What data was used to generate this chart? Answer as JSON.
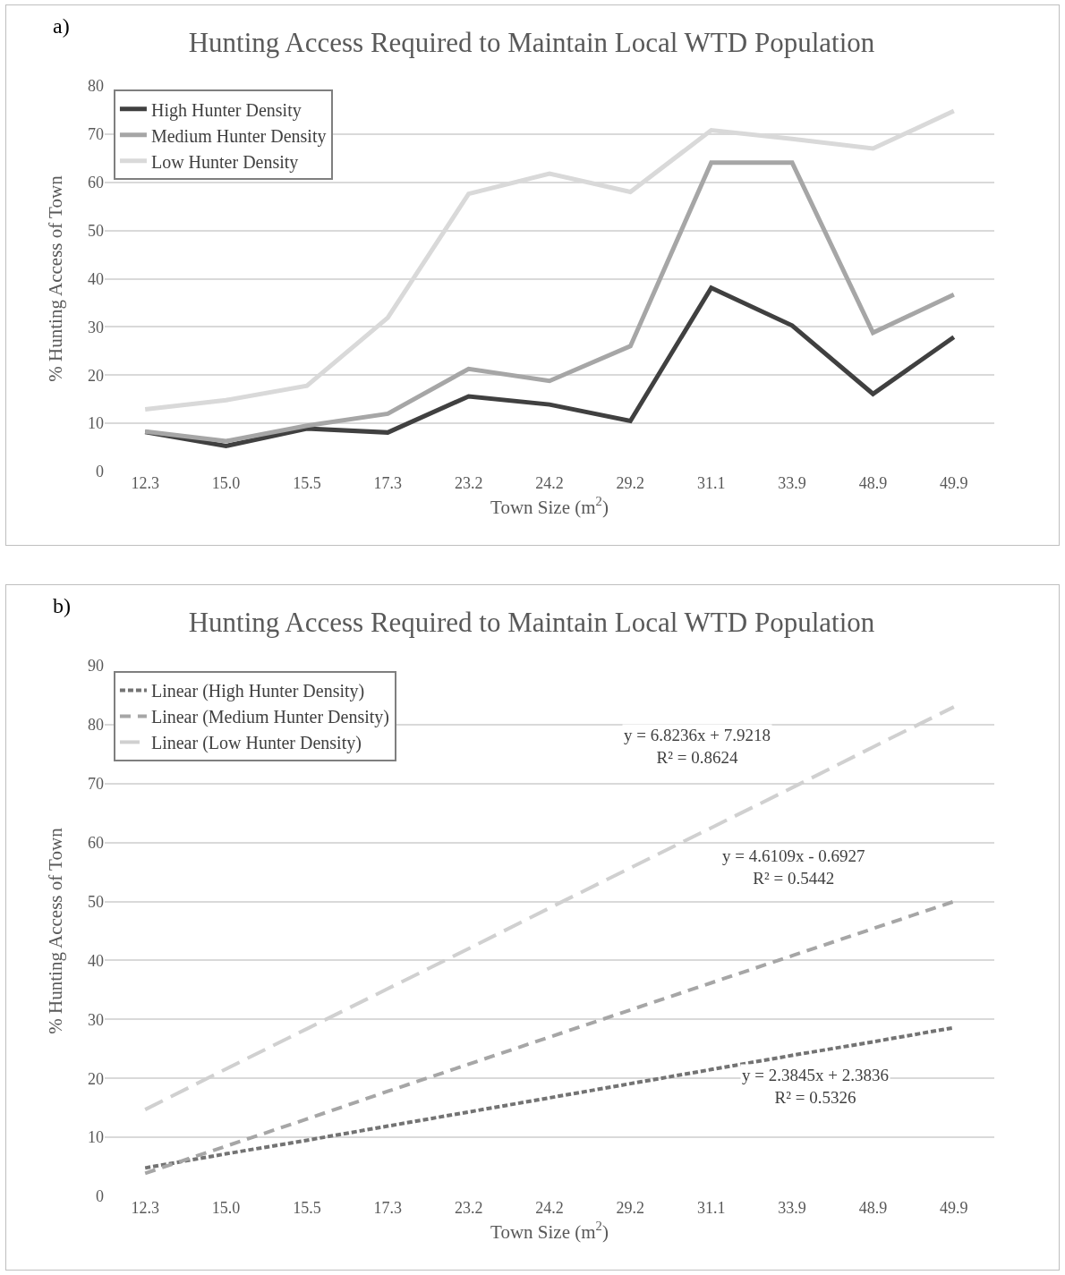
{
  "chart_data": [
    {
      "type": "line",
      "title": "Hunting Access Required to Maintain Local WTD Population",
      "xlabel": "Town Size (m$^{2}$)",
      "ylabel": "% Hunting Access of Town",
      "annotations": [
        "a)"
      ],
      "categories": [
        "12.3",
        "15.0",
        "15.5",
        "17.3",
        "23.2",
        "24.2",
        "29.2",
        "31.1",
        "33.9",
        "48.9",
        "49.9"
      ],
      "series": [
        {
          "name": "High Hunter Density",
          "color": "#404040",
          "values": [
            8.2,
            5.3,
            8.9,
            8.1,
            15.6,
            13.9,
            10.5,
            38.1,
            30.3,
            16.1,
            27.9
          ]
        },
        {
          "name": "Medium Hunter Density",
          "color": "#a6a6a6",
          "values": [
            8.3,
            6.3,
            9.5,
            12.0,
            21.3,
            18.8,
            26.0,
            64.1,
            64.1,
            28.8,
            36.7
          ]
        },
        {
          "name": "Low Hunter Density",
          "color": "#d9d9d9",
          "values": [
            12.9,
            14.8,
            17.8,
            31.9,
            57.6,
            61.8,
            58.0,
            70.8,
            69.0,
            67.0,
            74.8
          ]
        }
      ],
      "ylim": [
        0,
        80
      ],
      "yticks": [
        0,
        10,
        20,
        30,
        40,
        50,
        60,
        70,
        80
      ],
      "grid": "y",
      "legend": "top left",
      "line_style": "solid",
      "marker": "none"
    },
    {
      "type": "line",
      "title": "Hunting Access Required to Maintain Local WTD Population",
      "xlabel": "Town Size (m$^{2}$)",
      "ylabel": "% Hunting Access of Town",
      "annotations": [
        "b)",
        "y = 6.8236x + 7.9218\nR² = 0.8624",
        "y = 4.6109x - 0.6927\nR² = 0.5442",
        "y = 2.3845x + 2.3836\nR² = 0.5326"
      ],
      "categories": [
        "12.3",
        "15.0",
        "15.5",
        "17.3",
        "23.2",
        "24.2",
        "29.2",
        "31.1",
        "33.9",
        "48.9",
        "49.9"
      ],
      "series": [
        {
          "name": "Linear (High Hunter Density)",
          "color": "#737373",
          "line_style": "dotted",
          "values": [
            4.8,
            7.2,
            9.5,
            11.9,
            14.3,
            16.7,
            19.1,
            21.5,
            23.9,
            26.2,
            28.6
          ]
        },
        {
          "name": "Linear (Medium Hunter Density)",
          "color": "#a6a6a6",
          "line_style": "dashed",
          "values": [
            3.9,
            8.5,
            13.1,
            17.8,
            22.4,
            27.0,
            31.6,
            36.2,
            40.8,
            45.4,
            50.0
          ]
        },
        {
          "name": "Linear (Low Hunter Density)",
          "color": "#d0d0d0",
          "line_style": "dashed",
          "values": [
            14.7,
            21.6,
            28.4,
            35.2,
            42.0,
            48.9,
            55.7,
            62.5,
            69.3,
            76.2,
            83.0
          ]
        }
      ],
      "ylim": [
        0,
        90
      ],
      "yticks": [
        0,
        10,
        20,
        30,
        40,
        50,
        60,
        70,
        80,
        90
      ],
      "grid": "y",
      "legend": "top left",
      "marker": "none"
    }
  ]
}
